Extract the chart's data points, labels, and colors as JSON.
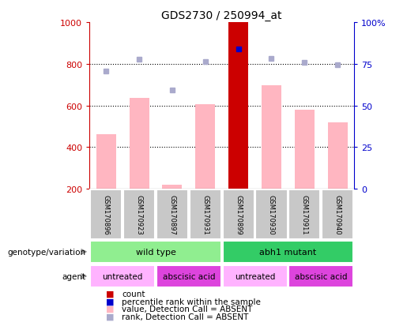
{
  "title": "GDS2730 / 250994_at",
  "samples": [
    "GSM170896",
    "GSM170923",
    "GSM170897",
    "GSM170931",
    "GSM170899",
    "GSM170930",
    "GSM170911",
    "GSM170940"
  ],
  "bar_values": [
    460,
    635,
    220,
    605,
    1000,
    695,
    580,
    520
  ],
  "bar_color_absent": "#FFB6C1",
  "bar_color_highlight": "#CC0000",
  "highlight_index": 4,
  "rank_dots": [
    765,
    820,
    675,
    810,
    870,
    825,
    805,
    795
  ],
  "rank_dot_color_absent": "#AAAACC",
  "rank_dot_color_highlight": "#0000CC",
  "ylim_left": [
    200,
    1000
  ],
  "ylim_right": [
    0,
    100
  ],
  "yticks_left": [
    200,
    400,
    600,
    800,
    1000
  ],
  "yticks_right": [
    0,
    25,
    50,
    75,
    100
  ],
  "ytick_labels_right": [
    "0",
    "25",
    "50",
    "75",
    "100%"
  ],
  "grid_values": [
    400,
    600,
    800
  ],
  "genotype_groups": [
    {
      "label": "wild type",
      "start": 0,
      "end": 4,
      "color": "#90EE90"
    },
    {
      "label": "abh1 mutant",
      "start": 4,
      "end": 8,
      "color": "#33CC66"
    }
  ],
  "agent_groups": [
    {
      "label": "untreated",
      "start": 0,
      "end": 2,
      "color": "#FFB3FF"
    },
    {
      "label": "abscisic acid",
      "start": 2,
      "end": 4,
      "color": "#DD44DD"
    },
    {
      "label": "untreated",
      "start": 4,
      "end": 6,
      "color": "#FFB3FF"
    },
    {
      "label": "abscisic acid",
      "start": 6,
      "end": 8,
      "color": "#DD44DD"
    }
  ],
  "legend_items": [
    {
      "color": "#CC0000",
      "label": "count"
    },
    {
      "color": "#0000CC",
      "label": "percentile rank within the sample"
    },
    {
      "color": "#FFB6C1",
      "label": "value, Detection Call = ABSENT"
    },
    {
      "color": "#AAAACC",
      "label": "rank, Detection Call = ABSENT"
    }
  ],
  "genotype_label": "genotype/variation",
  "agent_label": "agent",
  "left_axis_color": "#CC0000",
  "right_axis_color": "#0000CC",
  "bar_bottom": 200,
  "fig_width": 5.15,
  "fig_height": 4.14,
  "fig_dpi": 100
}
